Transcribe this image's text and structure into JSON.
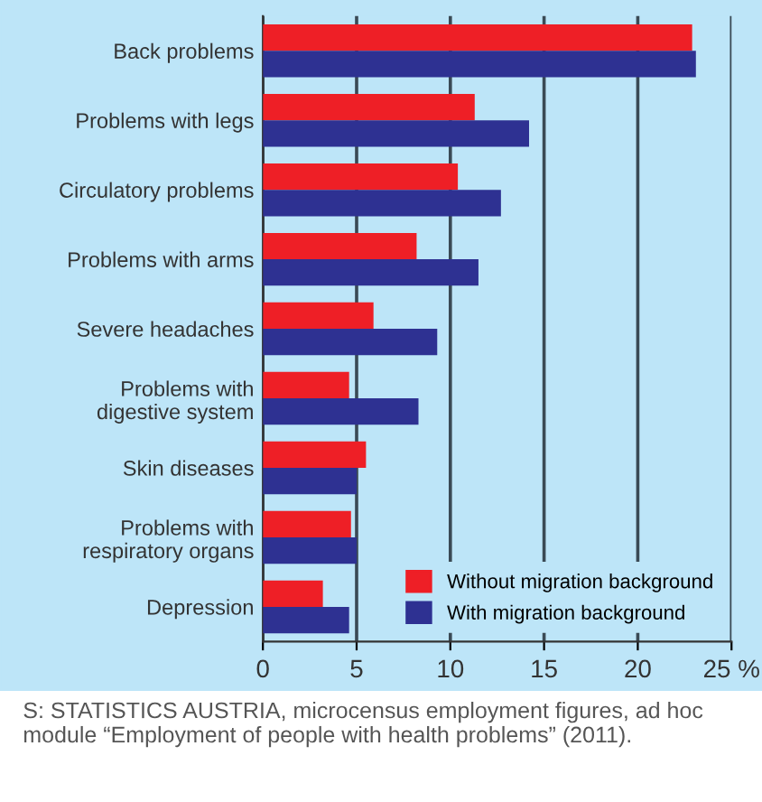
{
  "chart_data": {
    "type": "bar",
    "orientation": "horizontal",
    "categories": [
      "Back problems",
      "Problems with legs",
      "Circulatory problems",
      "Problems with arms",
      "Severe headaches",
      "Problems with\ndigestive system",
      "Skin diseases",
      "Problems with\nrespiratory organs",
      "Depression"
    ],
    "series": [
      {
        "name": "Without migration background",
        "color": "#ee1f26",
        "values": [
          22.9,
          11.3,
          10.4,
          8.2,
          5.9,
          4.6,
          5.5,
          4.7,
          3.2
        ]
      },
      {
        "name": "With migration background",
        "color": "#2e3192",
        "values": [
          23.1,
          14.2,
          12.7,
          11.5,
          9.3,
          8.3,
          5.0,
          5.0,
          4.6
        ]
      }
    ],
    "xlim": [
      0,
      25
    ],
    "xticks": [
      0,
      5,
      10,
      15,
      20,
      {
        "value": 25,
        "label": "25 %"
      }
    ],
    "grid": "x",
    "legend": "bottom right",
    "annotations": [
      "S: STATISTICS AUSTRIA, microcensus employment figures, ad hoc module “Employment of people with health problems” (2011)."
    ]
  }
}
